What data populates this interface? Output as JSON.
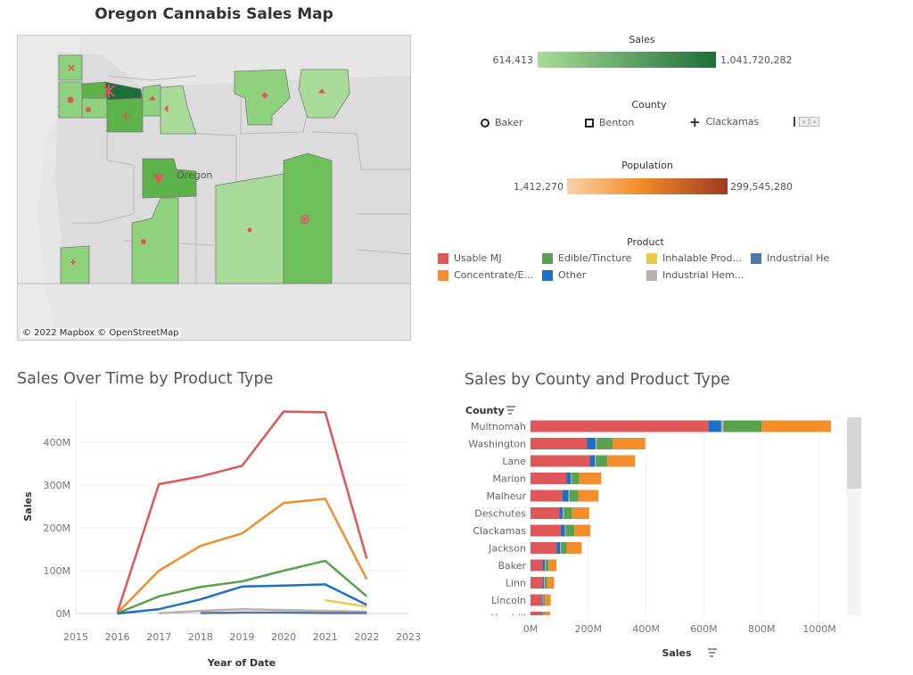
{
  "map": {
    "title": "Oregon Cannabis Sales Map",
    "place_label": "Oregon",
    "attribution": "© 2022 Mapbox  © OpenStreetMap"
  },
  "legends": {
    "sales": {
      "title": "Sales",
      "min": "614,413",
      "max": "1,041,720,282",
      "color_min": "#a8dc98",
      "color_max": "#1f6e3a"
    },
    "county": {
      "title": "County",
      "items": [
        {
          "label": "Baker",
          "icon": "circle-icon"
        },
        {
          "label": "Benton",
          "icon": "square-icon"
        },
        {
          "label": "Clackamas",
          "icon": "plus-icon"
        }
      ]
    },
    "population": {
      "title": "Population",
      "min": "1,412,270",
      "max": "299,545,280",
      "color_min": "#f7c58e",
      "color_max": "#a0391f"
    },
    "product": {
      "title": "Product",
      "items": [
        {
          "label": "Usable MJ",
          "color": "#e05759"
        },
        {
          "label": "Edible/Tincture",
          "color": "#59a14f"
        },
        {
          "label": "Inhalable Prod...",
          "color": "#edc948"
        },
        {
          "label": "Industrial He",
          "color": "#4e79a7"
        },
        {
          "label": "Concentrate/E...",
          "color": "#f28e2b"
        },
        {
          "label": "Other",
          "color": "#1f6fc5"
        },
        {
          "label": "Industrial Hem...",
          "color": "#bab0ac"
        }
      ]
    }
  },
  "chart_data": [
    {
      "type": "line",
      "title": "Sales Over Time by Product Type",
      "xlabel": "Year of Date",
      "ylabel": "Sales",
      "x": [
        2016,
        2017,
        2018,
        2019,
        2020,
        2021,
        2022
      ],
      "xticks": [
        "2015",
        "2016",
        "2017",
        "2018",
        "2019",
        "2020",
        "2021",
        "2022",
        "2023"
      ],
      "xlim": [
        2015,
        2023
      ],
      "yticks": [
        "0M",
        "100M",
        "200M",
        "300M",
        "400M"
      ],
      "ylim": [
        0,
        500
      ],
      "unit": "M",
      "series": [
        {
          "name": "Usable MJ",
          "color": "#e05759",
          "values": [
            2,
            302,
            320,
            345,
            472,
            470,
            128
          ]
        },
        {
          "name": "Concentrate/E...",
          "color": "#f28e2b",
          "values": [
            1,
            100,
            158,
            187,
            258,
            268,
            80
          ]
        },
        {
          "name": "Edible/Tincture",
          "color": "#59a14f",
          "values": [
            0.5,
            40,
            62,
            75,
            100,
            123,
            40
          ]
        },
        {
          "name": "Other",
          "color": "#1f6fc5",
          "values": [
            0,
            10,
            33,
            63,
            65,
            68,
            20
          ]
        },
        {
          "name": "Inhalable Prod...",
          "color": "#edc948",
          "values": [
            null,
            null,
            null,
            null,
            null,
            31,
            16
          ]
        },
        {
          "name": "Industrial Hem...",
          "color": "#bab0ac",
          "values": [
            null,
            0.5,
            6,
            10,
            8,
            6,
            4
          ]
        },
        {
          "name": "Industrial He",
          "color": "#4e79a7",
          "values": [
            null,
            null,
            1,
            2,
            2,
            1,
            1
          ]
        }
      ]
    },
    {
      "type": "bar",
      "orientation": "horizontal",
      "stacked": true,
      "title": "Sales by County and Product Type",
      "ylabel": "County",
      "xlabel": "Sales",
      "xticks": [
        "0M",
        "200M",
        "400M",
        "600M",
        "800M",
        "1000M"
      ],
      "xlim": [
        0,
        1080
      ],
      "unit": "M",
      "categories": [
        "Multnomah",
        "Washington",
        "Lane",
        "Marion",
        "Malheur",
        "Deschutes",
        "Clackamas",
        "Jackson",
        "Baker",
        "Linn",
        "Lincoln",
        "Yamhill"
      ],
      "series": [
        {
          "name": "Usable MJ",
          "color": "#e05759",
          "values": [
            615,
            195,
            205,
            125,
            110,
            100,
            105,
            90,
            42,
            42,
            38,
            36
          ]
        },
        {
          "name": "Other",
          "color": "#1f6fc5",
          "values": [
            45,
            30,
            18,
            15,
            22,
            12,
            14,
            12,
            8,
            5,
            4,
            4
          ]
        },
        {
          "name": "Industrial Hem...",
          "color": "#bab0ac",
          "values": [
            8,
            4,
            3,
            3,
            3,
            3,
            3,
            3,
            2,
            2,
            2,
            2
          ]
        },
        {
          "name": "Edible/Tincture",
          "color": "#59a14f",
          "values": [
            132,
            55,
            40,
            25,
            30,
            28,
            30,
            20,
            10,
            8,
            6,
            6
          ]
        },
        {
          "name": "Concentrate/E...",
          "color": "#f28e2b",
          "values": [
            240,
            113,
            96,
            77,
            70,
            60,
            55,
            52,
            28,
            25,
            20,
            20
          ]
        }
      ]
    }
  ]
}
